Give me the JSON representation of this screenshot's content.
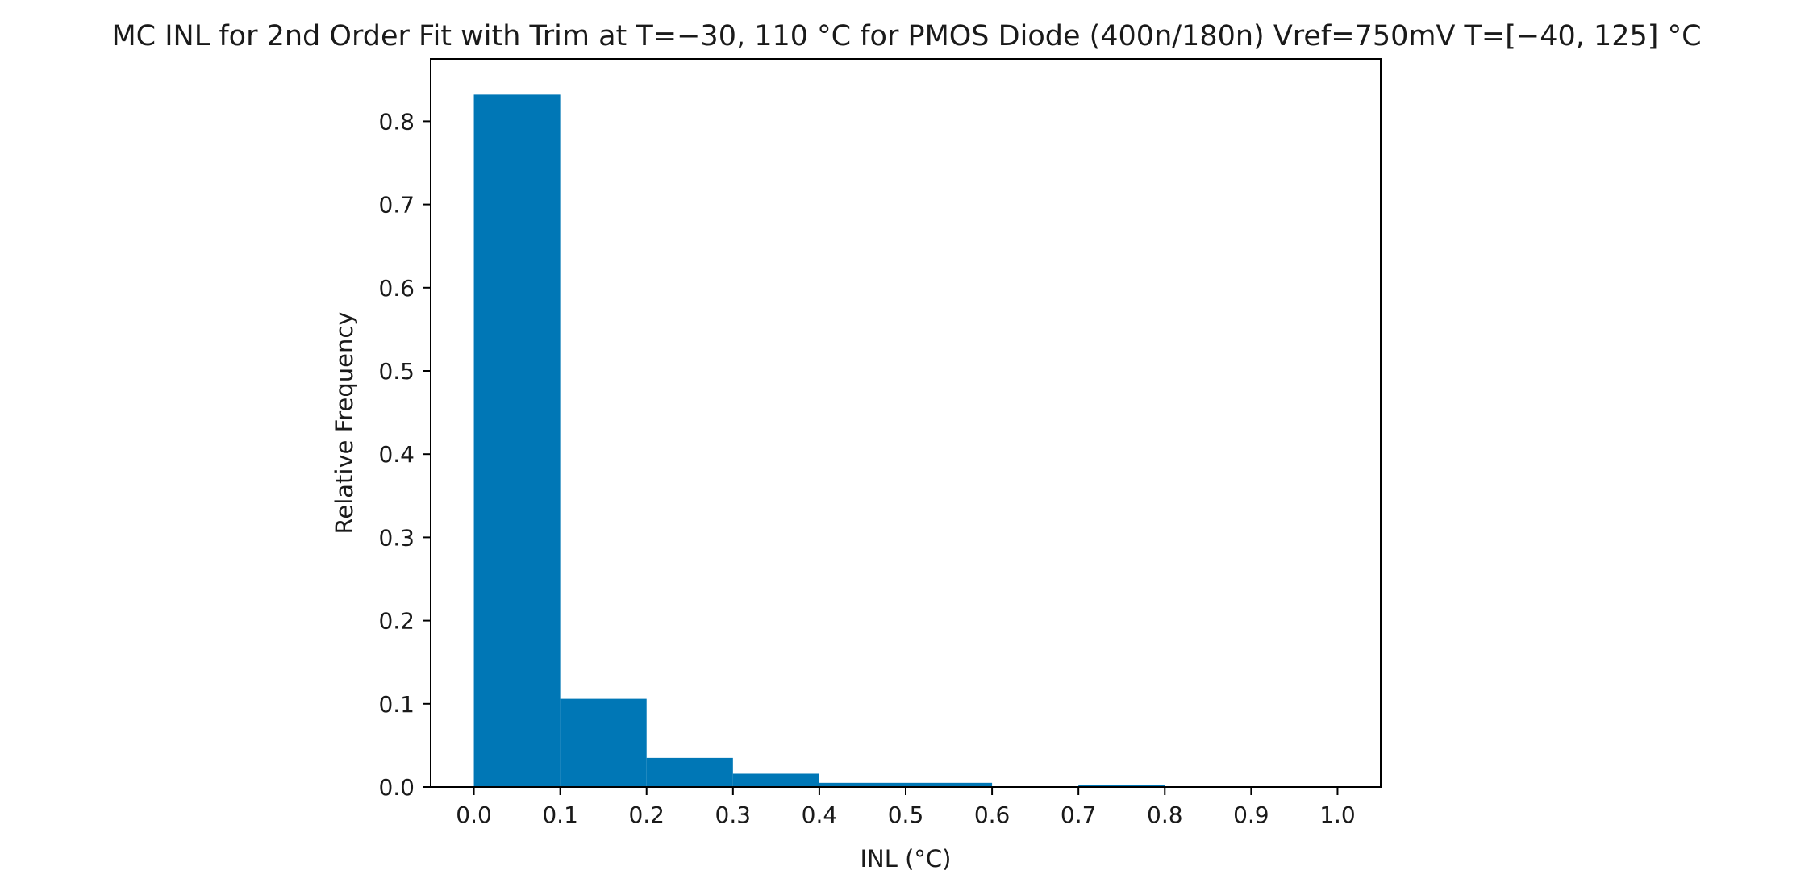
{
  "chart_data": {
    "type": "bar",
    "title": "MC INL for 2nd Order Fit with Trim at T=−30, 110 °C for PMOS Diode (400n/180n) Vref=750mV T=[−40, 125] °C",
    "xlabel": "INL (°C)",
    "ylabel": "Relative Frequency",
    "bar_color": "#0077b6",
    "grid": false,
    "legend": "none",
    "xlim": [
      -0.05,
      1.05
    ],
    "ylim": [
      0.0,
      0.875
    ],
    "xticks": [
      0.0,
      0.1,
      0.2,
      0.3,
      0.4,
      0.5,
      0.6,
      0.7,
      0.8,
      0.9,
      1.0
    ],
    "xtick_labels": [
      "0.0",
      "0.1",
      "0.2",
      "0.3",
      "0.4",
      "0.5",
      "0.6",
      "0.7",
      "0.8",
      "0.9",
      "1.0"
    ],
    "yticks": [
      0.0,
      0.1,
      0.2,
      0.3,
      0.4,
      0.5,
      0.6,
      0.7,
      0.8
    ],
    "ytick_labels": [
      "0.0",
      "0.1",
      "0.2",
      "0.3",
      "0.4",
      "0.5",
      "0.6",
      "0.7",
      "0.8"
    ],
    "bins": [
      {
        "x0": 0.0,
        "x1": 0.1,
        "value": 0.832
      },
      {
        "x0": 0.1,
        "x1": 0.2,
        "value": 0.106
      },
      {
        "x0": 0.2,
        "x1": 0.3,
        "value": 0.035
      },
      {
        "x0": 0.3,
        "x1": 0.4,
        "value": 0.016
      },
      {
        "x0": 0.4,
        "x1": 0.5,
        "value": 0.005
      },
      {
        "x0": 0.5,
        "x1": 0.6,
        "value": 0.005
      },
      {
        "x0": 0.6,
        "x1": 0.7,
        "value": 0.0
      },
      {
        "x0": 0.7,
        "x1": 0.8,
        "value": 0.002
      },
      {
        "x0": 0.8,
        "x1": 0.9,
        "value": 0.0
      },
      {
        "x0": 0.9,
        "x1": 1.0,
        "value": 0.0
      }
    ]
  }
}
